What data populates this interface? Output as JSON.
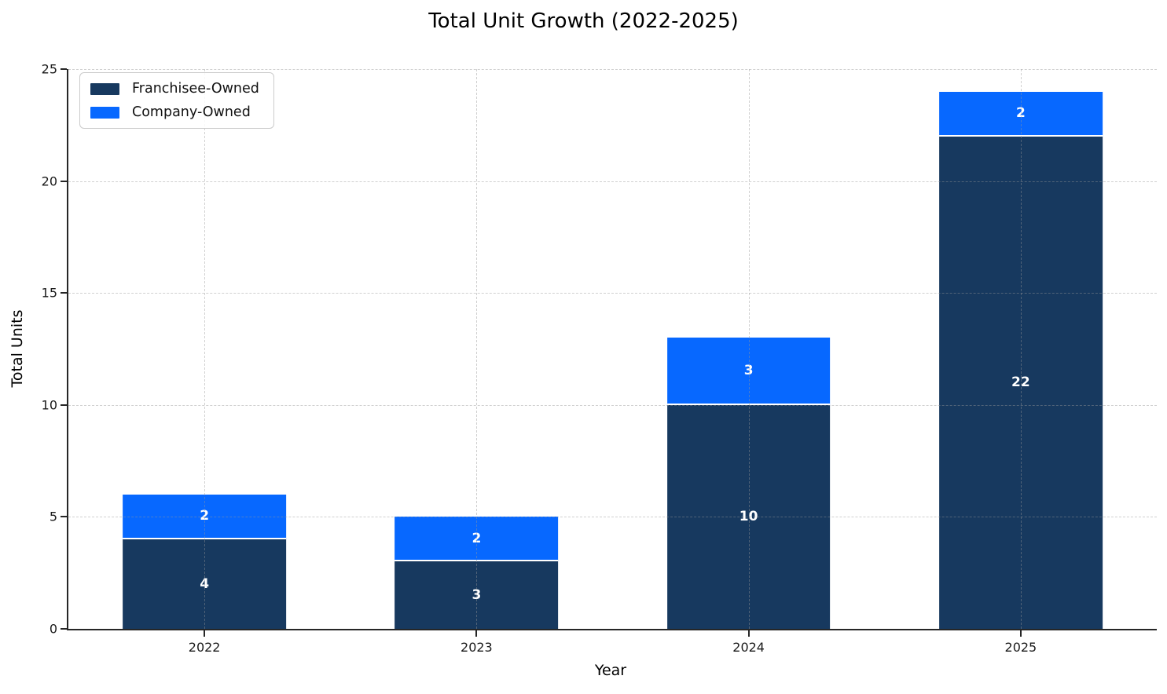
{
  "chart_data": {
    "type": "bar",
    "stacked": true,
    "title": "Total Unit Growth (2022-2025)",
    "xlabel": "Year",
    "ylabel": "Total Units",
    "categories": [
      "2022",
      "2023",
      "2024",
      "2025"
    ],
    "series": [
      {
        "name": "Franchisee-Owned",
        "color": "#17395f",
        "values": [
          4,
          3,
          10,
          22
        ]
      },
      {
        "name": "Company-Owned",
        "color": "#0768ff",
        "values": [
          2,
          2,
          3,
          2
        ]
      }
    ],
    "totals": [
      6,
      5,
      13,
      24
    ],
    "ylim": [
      0,
      25
    ],
    "yticks": [
      0,
      5,
      10,
      15,
      20,
      25
    ],
    "grid": true,
    "grid_style": "dashed",
    "legend_position": "upper left",
    "bar_width_fraction": 0.6,
    "bar_label_color": "#ffffff",
    "axis_color": "#262626",
    "background_color": "#ffffff"
  }
}
